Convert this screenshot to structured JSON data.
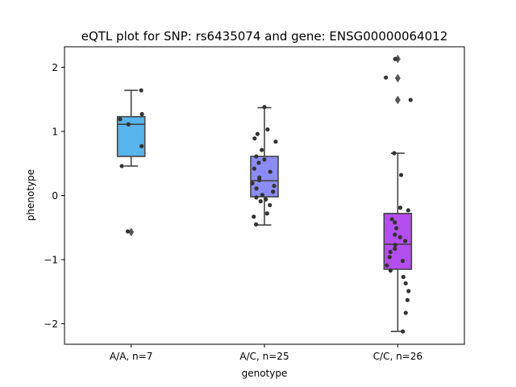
{
  "chart_data": {
    "type": "box",
    "title": "eQTL plot for SNP: rs6435074 and gene: ENSG00000064012",
    "xlabel": "genotype",
    "ylabel": "phenotype",
    "ylim": [
      -2.32,
      2.32
    ],
    "yticks": [
      {
        "value": 2,
        "label": "2"
      },
      {
        "value": 1,
        "label": "1"
      },
      {
        "value": 0,
        "label": "0"
      },
      {
        "value": -1,
        "label": "−1"
      },
      {
        "value": -2,
        "label": "−2"
      }
    ],
    "grid": false,
    "legend": "none",
    "categories": [
      "A/A, n=7",
      "A/C, n=25",
      "C/C, n=26"
    ],
    "box_colors": [
      "#58b4ec",
      "#8c8cf5",
      "#b44ef0"
    ],
    "box_edge_color": "#444444",
    "point_color": "#333333",
    "groups": [
      {
        "category": "A/A, n=7",
        "box": {
          "q1": 0.61,
          "median": 1.11,
          "q3": 1.23,
          "whisker_low": 0.46,
          "whisker_high": 1.64
        },
        "outliers": [
          -0.57
        ],
        "points": [
          1.64,
          1.27,
          1.19,
          1.11,
          0.77,
          0.46,
          -0.56
        ]
      },
      {
        "category": "A/C, n=25",
        "box": {
          "q1": -0.02,
          "median": 0.23,
          "q3": 0.61,
          "whisker_low": -0.46,
          "whisker_high": 1.37
        },
        "outliers": [],
        "points": [
          1.38,
          1.03,
          0.96,
          0.89,
          0.84,
          0.71,
          0.61,
          0.56,
          0.51,
          0.42,
          0.37,
          0.28,
          0.24,
          0.19,
          0.15,
          0.11,
          0.06,
          0.01,
          -0.03,
          -0.06,
          -0.09,
          -0.15,
          -0.28,
          -0.33,
          -0.45
        ]
      },
      {
        "category": "C/C, n=26",
        "box": {
          "q1": -1.15,
          "median": -0.76,
          "q3": -0.28,
          "whisker_low": -2.12,
          "whisker_high": 0.66
        },
        "outliers": [
          2.13,
          1.83,
          1.49
        ],
        "points": [
          2.13,
          1.84,
          1.49,
          0.66,
          0.32,
          -0.19,
          -0.23,
          -0.37,
          -0.42,
          -0.51,
          -0.61,
          -0.71,
          -0.77,
          -0.83,
          -0.88,
          -0.96,
          -1.02,
          -1.09,
          -1.17,
          -1.27,
          -1.37,
          -1.49,
          -1.63,
          -1.83,
          -2.12,
          -0.65
        ]
      }
    ]
  }
}
